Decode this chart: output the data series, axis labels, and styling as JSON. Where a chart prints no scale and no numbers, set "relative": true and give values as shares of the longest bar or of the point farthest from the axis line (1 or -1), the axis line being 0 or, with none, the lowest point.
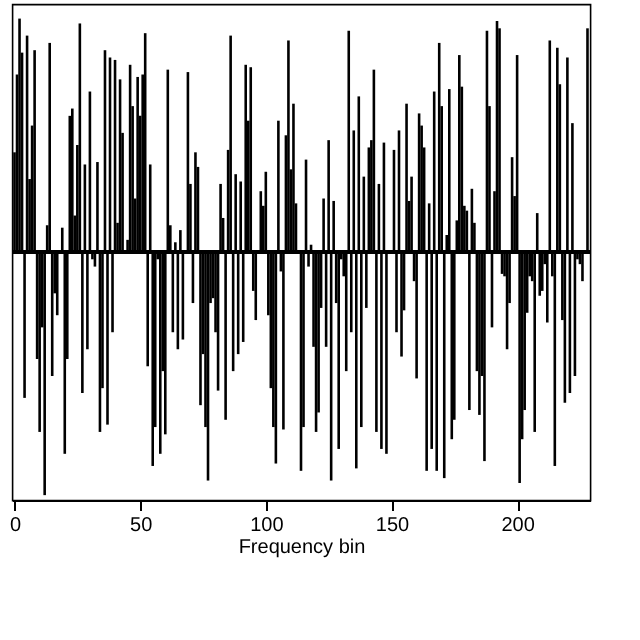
{
  "chart_data": {
    "type": "bar",
    "relative": true,
    "xlabel": "Frequency bin",
    "xlim": [
      -1,
      229
    ],
    "xticks": [
      0,
      50,
      100,
      150,
      200
    ],
    "grid": false,
    "x": [
      0,
      1,
      2,
      3,
      4,
      5,
      6,
      7,
      8,
      9,
      10,
      11,
      12,
      13,
      14,
      15,
      16,
      17,
      19,
      20,
      21,
      22,
      23,
      24,
      25,
      26,
      27,
      28,
      29,
      30,
      31,
      32,
      33,
      34,
      35,
      36,
      37,
      38,
      39,
      40,
      41,
      42,
      43,
      45,
      46,
      47,
      48,
      49,
      50,
      51,
      52,
      53,
      54,
      55,
      56,
      57,
      58,
      59,
      60,
      61,
      62,
      63,
      64,
      65,
      66,
      67,
      69,
      70,
      71,
      72,
      73,
      74,
      75,
      76,
      77,
      78,
      79,
      80,
      81,
      82,
      83,
      84,
      85,
      86,
      87,
      88,
      89,
      90,
      91,
      92,
      93,
      94,
      95,
      96,
      98,
      99,
      100,
      101,
      102,
      103,
      104,
      105,
      106,
      107,
      108,
      109,
      110,
      111,
      112,
      114,
      115,
      116,
      117,
      118,
      119,
      120,
      121,
      122,
      123,
      124,
      125,
      126,
      127,
      128,
      129,
      130,
      131,
      132,
      133,
      134,
      135,
      136,
      137,
      138,
      139,
      140,
      141,
      142,
      143,
      144,
      145,
      146,
      147,
      148,
      151,
      152,
      153,
      154,
      155,
      156,
      157,
      158,
      159,
      160,
      161,
      162,
      163,
      164,
      165,
      166,
      167,
      168,
      169,
      170,
      171,
      172,
      173,
      174,
      175,
      176,
      177,
      178,
      179,
      180,
      181,
      182,
      183,
      184,
      185,
      186,
      187,
      188,
      189,
      190,
      191,
      192,
      193,
      194,
      195,
      196,
      197,
      198,
      199,
      200,
      201,
      202,
      203,
      204,
      205,
      206,
      207,
      208,
      209,
      210,
      211,
      212,
      213,
      214,
      215,
      216,
      217,
      218,
      219,
      220,
      221,
      222,
      223,
      224,
      225,
      226,
      228
    ],
    "series": [
      {
        "color": "#000000",
        "values": [
          0.41,
          0.73,
          0.96,
          0.82,
          -0.6,
          0.89,
          0.3,
          0.52,
          0.83,
          -0.44,
          -0.74,
          -0.31,
          -1,
          0.11,
          0.86,
          -0.51,
          -0.17,
          -0.26,
          0.1,
          -0.83,
          -0.44,
          0.56,
          0.59,
          0.15,
          0.44,
          0.94,
          -0.58,
          0.36,
          -0.4,
          0.66,
          -0.03,
          -0.06,
          0.37,
          -0.74,
          -0.56,
          0.83,
          -0.71,
          0.8,
          -0.33,
          0.79,
          0.12,
          0.71,
          0.49,
          0.05,
          0.77,
          0.6,
          0.22,
          0.72,
          0.56,
          0.73,
          0.9,
          -0.47,
          0.36,
          -0.88,
          -0.72,
          -0.03,
          -0.83,
          -0.49,
          -0.75,
          0.75,
          0.11,
          -0.33,
          0.04,
          -0.4,
          0.09,
          -0.36,
          0.74,
          0.28,
          -0.21,
          0.41,
          0.35,
          -0.63,
          -0.42,
          -0.72,
          -0.94,
          -0.21,
          -0.19,
          -0.33,
          -0.57,
          0.28,
          0.14,
          -0.69,
          0.42,
          0.89,
          -0.49,
          0.32,
          -0.42,
          0.29,
          -0.37,
          0.77,
          0.54,
          0.76,
          -0.16,
          -0.28,
          0.25,
          0.19,
          0.33,
          -0.26,
          -0.56,
          -0.72,
          -0.87,
          0.54,
          -0.08,
          -0.73,
          0.48,
          0.87,
          0.34,
          0.61,
          0.2,
          -0.9,
          -0.72,
          0.38,
          -0.06,
          0.03,
          -0.39,
          -0.74,
          -0.66,
          -0.23,
          0.22,
          -0.39,
          0.46,
          -0.94,
          0.21,
          -0.21,
          -0.81,
          -0.03,
          -0.1,
          -0.49,
          0.91,
          -0.33,
          0.5,
          -0.89,
          0.64,
          -0.72,
          0.31,
          -0.23,
          0.43,
          0.46,
          0.75,
          -0.74,
          0.28,
          -0.81,
          0.45,
          -0.83,
          0.42,
          -0.33,
          0.5,
          -0.43,
          -0.24,
          0.61,
          0.21,
          0.31,
          -0.12,
          -0.52,
          0.57,
          0.52,
          0.43,
          -0.9,
          0.2,
          -0.81,
          0.66,
          -0.9,
          0.86,
          0.6,
          -0.93,
          0.07,
          0.67,
          -0.77,
          -0.69,
          0.13,
          0.81,
          0.68,
          0.19,
          0.17,
          -0.65,
          0.26,
          0.12,
          -0.49,
          -0.67,
          -0.51,
          -0.86,
          0.91,
          0.6,
          -0.31,
          0.25,
          0.95,
          0.92,
          -0.09,
          -0.1,
          -0.4,
          -0.21,
          0.39,
          0.23,
          0.81,
          -0.95,
          -0.77,
          -0.65,
          -0.25,
          -0.1,
          -0.12,
          -0.74,
          0.16,
          -0.18,
          -0.16,
          -0.05,
          -0.29,
          0.87,
          -0.1,
          -0.88,
          0.84,
          0.69,
          -0.28,
          -0.62,
          0.8,
          -0.58,
          0.53,
          -0.51,
          -0.03,
          -0.05,
          -0.12,
          0.92
        ]
      }
    ]
  }
}
